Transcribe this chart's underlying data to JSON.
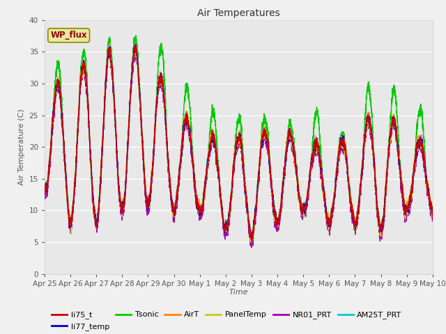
{
  "title": "Air Temperatures",
  "xlabel": "Time",
  "ylabel": "Air Temperature (C)",
  "ylim": [
    0,
    40
  ],
  "yticks": [
    0,
    5,
    10,
    15,
    20,
    25,
    30,
    35,
    40
  ],
  "n_days": 15,
  "x_tick_labels": [
    "Apr 25",
    "Apr 26",
    "Apr 27",
    "Apr 28",
    "Apr 29",
    "Apr 30",
    "May 1",
    "May 2",
    "May 3",
    "May 4",
    "May 5",
    "May 6",
    "May 7",
    "May 8",
    "May 9",
    "May 10"
  ],
  "series_colors": {
    "li75_t": "#cc0000",
    "li77_temp": "#0000cc",
    "Tsonic": "#00cc00",
    "AirT": "#ff8800",
    "PanelTemp": "#cccc00",
    "NR01_PRT": "#aa00aa",
    "AM25T_PRT": "#00cccc"
  },
  "wp_flux_box_facecolor": "#e8e8a0",
  "wp_flux_box_edgecolor": "#888800",
  "wp_flux_text_color": "#990000",
  "plot_bg_color": "#e8e8e8",
  "fig_bg_color": "#f0f0f0",
  "grid_color": "#ffffff",
  "figsize": [
    6.4,
    4.8
  ],
  "dpi": 100,
  "day_peaks": [
    28,
    32,
    34,
    36,
    35,
    27,
    22,
    21,
    22,
    23,
    21,
    20,
    22,
    27,
    21
  ],
  "day_troughs": [
    13,
    8,
    8,
    10,
    11,
    10,
    10,
    7,
    6,
    8,
    10,
    8,
    8,
    7,
    10
  ],
  "tsonic_extra": [
    3,
    2,
    1.5,
    1.5,
    5,
    5,
    4,
    3,
    2,
    1.5,
    5,
    1,
    5,
    5,
    5
  ]
}
